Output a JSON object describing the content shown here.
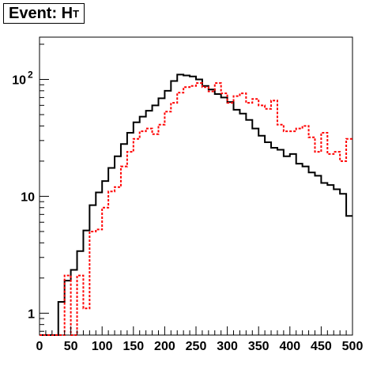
{
  "title": {
    "main": "Event: H",
    "sub": "T"
  },
  "chart_data": {
    "type": "line",
    "style": "histogram-step",
    "y_scale": "log",
    "xlim": [
      0,
      500
    ],
    "ylim": [
      0.65,
      230
    ],
    "x_ticks": [
      "0",
      "50",
      "100",
      "150",
      "200",
      "250",
      "300",
      "350",
      "400",
      "450",
      "500"
    ],
    "y_ticks": [
      {
        "value": 1,
        "label": "1"
      },
      {
        "value": 10,
        "label": "10"
      },
      {
        "value": 100,
        "label": "10",
        "exp": "2"
      }
    ],
    "bin_width": 10,
    "bin_edges_start": 0,
    "series": [
      {
        "color": "#000000",
        "dashed": false,
        "values": [
          0.65,
          0.65,
          0.65,
          1.25,
          1.9,
          2.35,
          3.4,
          5.1,
          8.4,
          10.8,
          13.5,
          17.5,
          22,
          28,
          35,
          43,
          48,
          54,
          60,
          69,
          80,
          97,
          110,
          108,
          106,
          100,
          88,
          82,
          75,
          70,
          64,
          55,
          51,
          45,
          38,
          33,
          29,
          26,
          25,
          22,
          23,
          19,
          18,
          16,
          15,
          13,
          12.5,
          11.5,
          10.5,
          6.8
        ]
      },
      {
        "color": "#ff0000",
        "dashed": true,
        "values": [
          0.65,
          0.65,
          0.65,
          0.65,
          2.1,
          0.65,
          2.1,
          1.1,
          5,
          5.2,
          8,
          11,
          12,
          18,
          24,
          31,
          36,
          38,
          34,
          41,
          53,
          63,
          77,
          86,
          88,
          93,
          86,
          79,
          93,
          76,
          63,
          72,
          76,
          63,
          68,
          60,
          56,
          66,
          41,
          36,
          36,
          38,
          40,
          32,
          24,
          35,
          23,
          24,
          20,
          31
        ]
      }
    ]
  }
}
